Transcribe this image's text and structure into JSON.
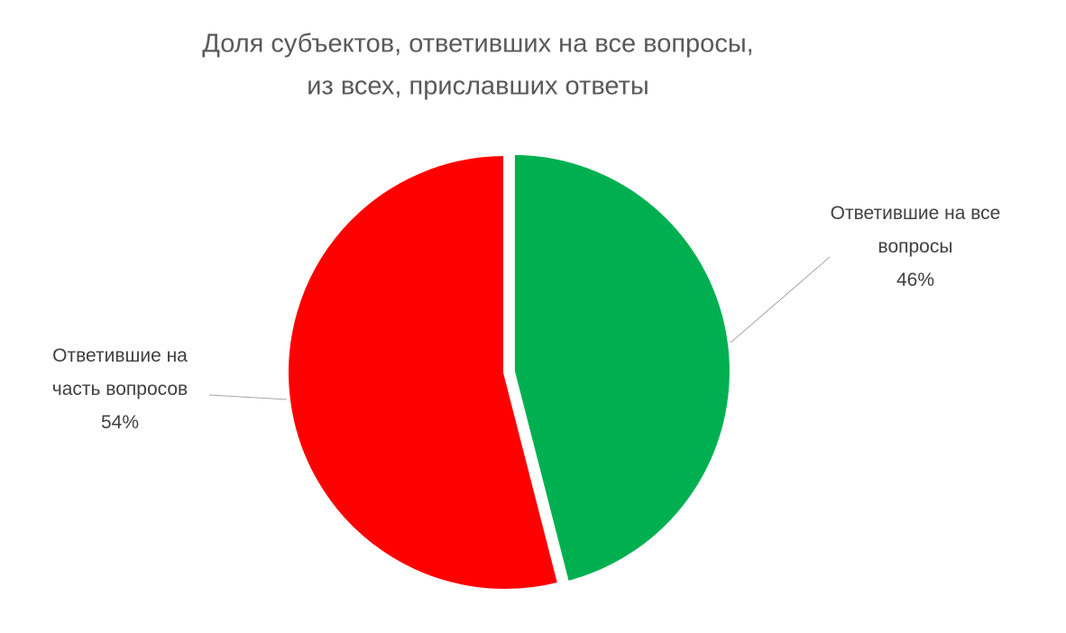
{
  "chart_data": {
    "type": "pie",
    "title": [
      "Доля субъектов, ответивших на все вопросы,",
      "из всех, приславших ответы"
    ],
    "categories": [
      "Ответившие на все вопросы",
      "Ответившие на часть вопросов"
    ],
    "values": [
      46,
      54
    ],
    "value_labels": [
      "46%",
      "54%"
    ],
    "colors": [
      "#00b050",
      "#ff0000"
    ]
  }
}
